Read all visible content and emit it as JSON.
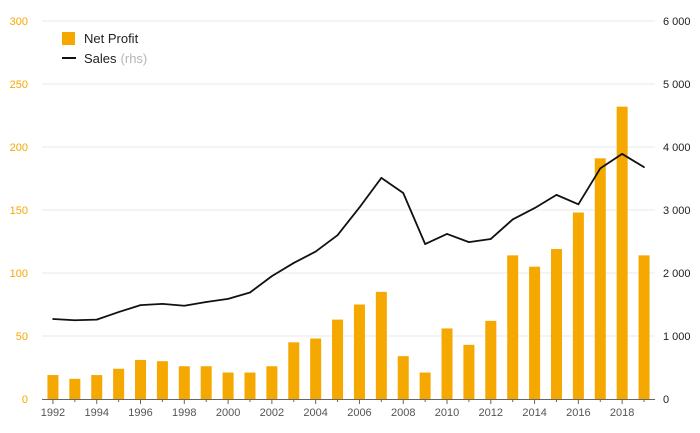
{
  "colors": {
    "bar": "#f5a800",
    "line": "#111111",
    "left_axis": "#f5a800",
    "right_axis": "#222222",
    "grid": "#e8e8e8",
    "x_axis": "#666666"
  },
  "legend": {
    "bar_label": "Net Profit",
    "line_label": "Sales",
    "line_suffix": "(rhs)"
  },
  "chart_data": {
    "type": "bar",
    "combo": "bar+line",
    "x": [
      1992,
      1993,
      1994,
      1995,
      1996,
      1997,
      1998,
      1999,
      2000,
      2001,
      2002,
      2003,
      2004,
      2005,
      2006,
      2007,
      2008,
      2009,
      2010,
      2011,
      2012,
      2013,
      2014,
      2015,
      2016,
      2017,
      2018,
      2019
    ],
    "xticks": [
      "1992",
      "1994",
      "1996",
      "1998",
      "2000",
      "2002",
      "2004",
      "2006",
      "2008",
      "2010",
      "2012",
      "2014",
      "2016",
      "2018"
    ],
    "series": [
      {
        "name": "Net Profit",
        "kind": "bar",
        "axis": "left",
        "values": [
          19,
          16,
          19,
          24,
          31,
          30,
          26,
          26,
          21,
          21,
          26,
          45,
          48,
          63,
          75,
          85,
          34,
          21,
          56,
          43,
          62,
          114,
          105,
          119,
          148,
          191,
          232,
          114
        ]
      },
      {
        "name": "Sales",
        "kind": "line",
        "axis": "right",
        "values": [
          1270,
          1250,
          1260,
          1380,
          1490,
          1510,
          1480,
          1540,
          1590,
          1690,
          1950,
          2160,
          2340,
          2600,
          3040,
          3510,
          3270,
          2460,
          2620,
          2490,
          2540,
          2850,
          3030,
          3240,
          3090,
          3660,
          3890,
          3680
        ]
      }
    ],
    "yleft": {
      "range": [
        0,
        300
      ],
      "ticks": [
        "0",
        "50",
        "100",
        "150",
        "200",
        "250",
        "300"
      ]
    },
    "yright": {
      "range": [
        0,
        6000
      ],
      "ticks": [
        "0",
        "1 000",
        "2 000",
        "3 000",
        "4 000",
        "5 000",
        "6 000"
      ]
    },
    "grid": true,
    "legend_position": "top-left"
  }
}
